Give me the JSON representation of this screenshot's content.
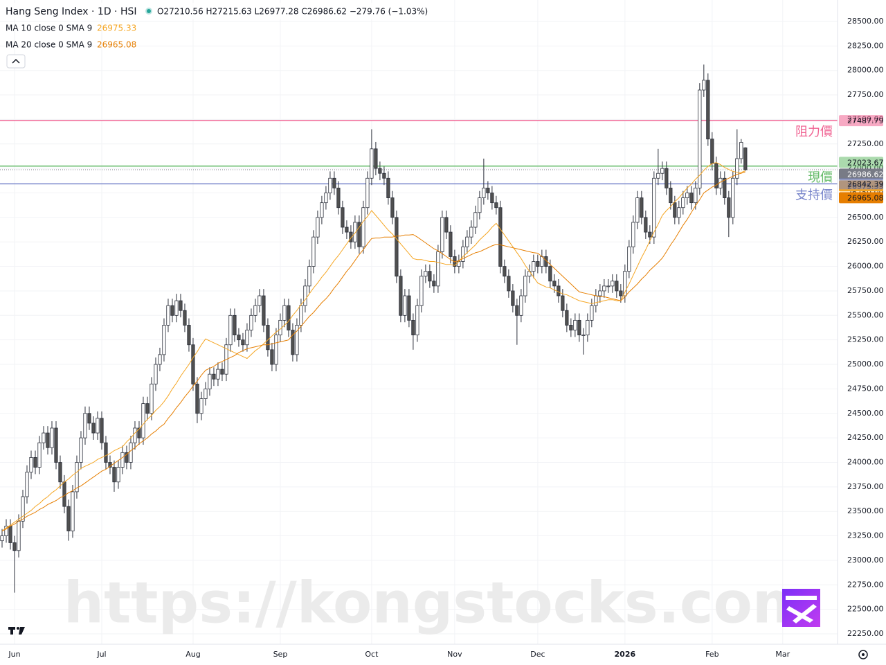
{
  "chart_data": {
    "type": "candlestick",
    "title": "Hang Seng Index · 1D · HSI",
    "ohlc_text": "O27210.56 H27215.63 L26977.28 C26986.62 −279.76 (−1.03%)",
    "watermark": "https://kongstocks.com",
    "up_color": "#ffffff",
    "down_color": "#505050",
    "wick_color": "#2a2e39",
    "open": [
      23200,
      23250,
      23350,
      23180,
      23100,
      23400,
      23650,
      23900,
      24050,
      23950,
      24200,
      24300,
      24150,
      24350,
      24000,
      23800,
      23550,
      23300,
      23700,
      24000,
      24250,
      24500,
      24400,
      24300,
      24450,
      24200,
      24000,
      23950,
      23800,
      23950,
      24100,
      24000,
      24200,
      24350,
      24250,
      24600,
      24500,
      24800,
      25000,
      25100,
      25400,
      25600,
      25500,
      25650,
      25550,
      25400,
      25200,
      24800,
      24500,
      24650,
      24750,
      24900,
      24850,
      24950,
      24900,
      25200,
      25500,
      25300,
      25250,
      25200,
      25350,
      25500,
      25600,
      25700,
      25400,
      25150,
      25000,
      25300,
      25450,
      25600,
      25350,
      25100,
      25400,
      25600,
      25800,
      26000,
      26300,
      26500,
      26650,
      26750,
      26900,
      26800,
      26600,
      26400,
      26350,
      26250,
      26450,
      26200,
      26600,
      26900,
      27200,
      27000,
      26950,
      26900,
      26700,
      26500,
      25900,
      25500,
      25700,
      25450,
      25300,
      25600,
      25900,
      25950,
      25850,
      25800,
      26150,
      26500,
      26350,
      26100,
      26000,
      26050,
      26200,
      26300,
      26400,
      26550,
      26700,
      26800,
      26750,
      26650,
      26600,
      26000,
      25900,
      25750,
      25600,
      25500,
      25700,
      25900,
      25950,
      26050,
      26000,
      26100,
      26000,
      25850,
      25800,
      25700,
      25550,
      25400,
      25350,
      25450,
      25300,
      25300,
      25450,
      25600,
      25700,
      25750,
      25800,
      25800,
      25850,
      25750,
      25700,
      25950,
      26200,
      26450,
      26700,
      26500,
      26350,
      26300,
      26900,
      26950,
      27000,
      26800,
      26650,
      26500,
      26600,
      26700,
      26750,
      26650,
      26800,
      27800,
      27900,
      27300,
      27050,
      26800,
      26900,
      26700,
      26500,
      26900,
      27100,
      27210.56
    ],
    "high": [
      23320,
      23420,
      23420,
      23250,
      23470,
      23720,
      23970,
      24120,
      24120,
      24270,
      24370,
      24370,
      24420,
      24420,
      24070,
      23870,
      23620,
      23770,
      24070,
      24320,
      24570,
      24570,
      24470,
      24520,
      24520,
      24270,
      24070,
      24020,
      24020,
      24170,
      24170,
      24270,
      24420,
      24420,
      24670,
      24670,
      24870,
      25070,
      25170,
      25470,
      25670,
      25670,
      25720,
      25720,
      25620,
      25470,
      25270,
      24870,
      24720,
      24820,
      24970,
      24970,
      25020,
      25020,
      25270,
      25570,
      25570,
      25370,
      25320,
      25420,
      25570,
      25670,
      25770,
      25770,
      25470,
      25220,
      25370,
      25520,
      25670,
      25670,
      25420,
      25470,
      25670,
      25870,
      26070,
      26370,
      26570,
      26720,
      26820,
      26970,
      26970,
      26870,
      26670,
      26470,
      26420,
      26520,
      26520,
      26670,
      26970,
      27400,
      27270,
      27070,
      27020,
      26970,
      26770,
      26570,
      25970,
      25770,
      25770,
      25520,
      25670,
      25970,
      26020,
      26020,
      25920,
      26220,
      26570,
      26570,
      26420,
      26170,
      26120,
      26270,
      26370,
      26470,
      26620,
      26770,
      27100,
      26870,
      26820,
      26720,
      26670,
      26070,
      25970,
      25820,
      25670,
      25770,
      25970,
      26020,
      26120,
      26120,
      26170,
      26170,
      26070,
      25920,
      25870,
      25770,
      25620,
      25470,
      25520,
      25520,
      25370,
      25520,
      25670,
      25770,
      25820,
      25870,
      25870,
      25920,
      25920,
      25820,
      26020,
      26270,
      26520,
      26770,
      26770,
      26570,
      26420,
      26970,
      27200,
      27070,
      27070,
      26870,
      26720,
      26670,
      26770,
      26820,
      26820,
      26870,
      27870,
      28060,
      27970,
      27370,
      27120,
      26970,
      26970,
      26770,
      26970,
      27400,
      27300,
      27215.63
    ],
    "low": [
      23130,
      23180,
      23110,
      22670,
      23030,
      23330,
      23580,
      23830,
      23880,
      23880,
      24130,
      24080,
      24080,
      23930,
      23730,
      23480,
      23200,
      23230,
      23630,
      23930,
      24180,
      24330,
      24230,
      24230,
      24130,
      23930,
      23880,
      23700,
      23730,
      23880,
      23930,
      23930,
      24130,
      24180,
      24180,
      24430,
      24430,
      24730,
      24930,
      25030,
      25330,
      25430,
      25430,
      25480,
      25330,
      25130,
      24730,
      24400,
      24430,
      24580,
      24680,
      24780,
      24780,
      24830,
      24830,
      25130,
      25230,
      25180,
      25130,
      25130,
      25280,
      25430,
      25530,
      25330,
      25080,
      24930,
      24930,
      25230,
      25380,
      25280,
      25030,
      25030,
      25330,
      25530,
      25730,
      25930,
      26230,
      26430,
      26580,
      26680,
      26730,
      26530,
      26330,
      26280,
      26180,
      26180,
      26130,
      26130,
      26530,
      26830,
      26930,
      26880,
      26830,
      26630,
      26430,
      25830,
      25430,
      25430,
      25380,
      25150,
      25230,
      25530,
      25830,
      25780,
      25730,
      25730,
      26080,
      26280,
      26030,
      25930,
      25930,
      25980,
      26130,
      26230,
      26330,
      26480,
      26630,
      26680,
      26580,
      26530,
      25930,
      25830,
      25680,
      25530,
      25200,
      25430,
      25630,
      25830,
      25880,
      25930,
      25930,
      25930,
      25780,
      25730,
      25630,
      25480,
      25330,
      25280,
      25280,
      25230,
      25100,
      25230,
      25380,
      25530,
      25630,
      25680,
      25730,
      25730,
      25680,
      25630,
      25630,
      25880,
      26130,
      26380,
      26430,
      26280,
      26230,
      26230,
      26830,
      26880,
      26730,
      26580,
      26430,
      26430,
      26530,
      26630,
      26580,
      26580,
      26730,
      27730,
      27230,
      26980,
      26730,
      26730,
      26630,
      26300,
      26430,
      26830,
      27050,
      26977.28
    ],
    "close": [
      23250,
      23350,
      23180,
      23100,
      23400,
      23650,
      23900,
      24050,
      23950,
      24200,
      24300,
      24150,
      24350,
      24000,
      23800,
      23550,
      23300,
      23700,
      24000,
      24250,
      24500,
      24400,
      24300,
      24450,
      24200,
      24000,
      23950,
      23800,
      23950,
      24100,
      24000,
      24200,
      24350,
      24250,
      24600,
      24500,
      24800,
      25000,
      25100,
      25400,
      25600,
      25500,
      25650,
      25550,
      25400,
      25200,
      24800,
      24500,
      24650,
      24750,
      24900,
      24850,
      24950,
      24900,
      25200,
      25500,
      25300,
      25250,
      25200,
      25350,
      25500,
      25600,
      25700,
      25400,
      25150,
      25000,
      25300,
      25450,
      25600,
      25350,
      25100,
      25400,
      25600,
      25800,
      26000,
      26300,
      26500,
      26650,
      26750,
      26900,
      26800,
      26600,
      26400,
      26350,
      26250,
      26450,
      26200,
      26600,
      26900,
      27200,
      27000,
      26950,
      26900,
      26700,
      26500,
      25900,
      25500,
      25700,
      25450,
      25300,
      25600,
      25900,
      25950,
      25850,
      25800,
      26150,
      26500,
      26350,
      26100,
      26000,
      26050,
      26200,
      26300,
      26400,
      26550,
      26700,
      26800,
      26750,
      26650,
      26600,
      26000,
      25900,
      25750,
      25600,
      25500,
      25700,
      25900,
      25950,
      26050,
      26000,
      26100,
      26000,
      25850,
      25800,
      25700,
      25550,
      25400,
      25350,
      25450,
      25300,
      25300,
      25450,
      25600,
      25700,
      25750,
      25800,
      25800,
      25850,
      25750,
      25700,
      25950,
      26200,
      26450,
      26700,
      26500,
      26350,
      26300,
      26900,
      26950,
      27000,
      26800,
      26650,
      26500,
      26600,
      26700,
      26750,
      26650,
      26800,
      27800,
      27900,
      27300,
      27050,
      26800,
      26900,
      26700,
      26500,
      26900,
      27100,
      27266.38,
      26986.62
    ],
    "series": [
      {
        "name": "MA 10 close 0 SMA 9",
        "color": "#f5a623",
        "values": [
          23300,
          23330,
          23360,
          23390,
          23420,
          23450,
          23480,
          23510,
          23550,
          23580,
          23620,
          23650,
          23690,
          23720,
          23760,
          23800,
          23830,
          23870,
          23900,
          23940,
          23960,
          23980,
          24000,
          24030,
          24050,
          24070,
          24090,
          24120,
          24140,
          24160,
          24210,
          24250,
          24300,
          24340,
          24390,
          24440,
          24480,
          24530,
          24570,
          24620,
          24680,
          24750,
          24810,
          24880,
          24940,
          25000,
          25070,
          25130,
          25200,
          25260,
          25240,
          25220,
          25200,
          25180,
          25160,
          25140,
          25120,
          25100,
          25080,
          25060,
          25100,
          25140,
          25170,
          25210,
          25250,
          25290,
          25330,
          25360,
          25400,
          25440,
          25500,
          25550,
          25610,
          25660,
          25720,
          25780,
          25830,
          25890,
          25940,
          26000,
          26060,
          26110,
          26170,
          26230,
          26290,
          26340,
          26400,
          26460,
          26510,
          26570,
          26520,
          26470,
          26420,
          26370,
          26330,
          26280,
          26230,
          26180,
          26130,
          26080,
          26070,
          26070,
          26060,
          26050,
          26050,
          26040,
          26030,
          26020,
          26020,
          26010,
          26050,
          26100,
          26140,
          26180,
          26220,
          26270,
          26310,
          26350,
          26400,
          26440,
          26380,
          26320,
          26260,
          26200,
          26140,
          26080,
          26010,
          25950,
          25890,
          25830,
          25810,
          25790,
          25780,
          25760,
          25740,
          25720,
          25710,
          25690,
          25670,
          25650,
          25640,
          25630,
          25620,
          25630,
          25640,
          25650,
          25660,
          25660,
          25650,
          25650,
          25740,
          25820,
          25910,
          26000,
          26090,
          26170,
          26260,
          26350,
          26430,
          26520,
          26570,
          26610,
          26660,
          26700,
          26750,
          26800,
          26840,
          26890,
          26930,
          26980,
          27020,
          27050,
          27060,
          27040,
          27010,
          26990,
          26970,
          26960,
          26960,
          26975.33
        ]
      },
      {
        "name": "MA 20 close 0 SMA 9",
        "color": "#e67e00",
        "values": [
          23300,
          23320,
          23350,
          23370,
          23400,
          23420,
          23450,
          23470,
          23490,
          23520,
          23540,
          23570,
          23590,
          23610,
          23640,
          23660,
          23690,
          23710,
          23740,
          23760,
          23790,
          23820,
          23850,
          23880,
          23910,
          23930,
          23960,
          23990,
          24020,
          24050,
          24080,
          24120,
          24150,
          24190,
          24220,
          24250,
          24290,
          24320,
          24360,
          24390,
          24450,
          24500,
          24560,
          24610,
          24670,
          24720,
          24780,
          24830,
          24890,
          24940,
          24960,
          24980,
          25010,
          25030,
          25050,
          25070,
          25090,
          25120,
          25140,
          25160,
          25170,
          25180,
          25190,
          25200,
          25200,
          25210,
          25220,
          25230,
          25240,
          25250,
          25300,
          25340,
          25390,
          25440,
          25490,
          25530,
          25580,
          25630,
          25670,
          25720,
          25780,
          25830,
          25890,
          25950,
          26000,
          26060,
          26120,
          26170,
          26230,
          26285,
          26290,
          26290,
          26300,
          26300,
          26300,
          26310,
          26310,
          26320,
          26320,
          26325,
          26300,
          26270,
          26240,
          26210,
          26180,
          26160,
          26130,
          26100,
          26070,
          26045,
          26060,
          26080,
          26100,
          26120,
          26140,
          26150,
          26170,
          26190,
          26210,
          26225,
          26220,
          26210,
          26200,
          26190,
          26180,
          26170,
          26160,
          26150,
          26140,
          26135,
          26100,
          26060,
          26020,
          25980,
          25940,
          25900,
          25860,
          25820,
          25780,
          25740,
          25730,
          25720,
          25710,
          25700,
          25690,
          25690,
          25680,
          25670,
          25660,
          25650,
          25690,
          25740,
          25780,
          25820,
          25870,
          25910,
          25960,
          26000,
          26040,
          26085,
          26150,
          26220,
          26280,
          26350,
          26420,
          26480,
          26550,
          26620,
          26680,
          26750,
          26780,
          26810,
          26830,
          26860,
          26880,
          26900,
          26920,
          26940,
          26950,
          26965.08
        ]
      }
    ],
    "levels": [
      {
        "label": "阻力價",
        "value": 27487.79,
        "color": "#f06292"
      },
      {
        "label": "現價",
        "value": 27023.67,
        "color": "#66bb6a"
      },
      {
        "label": "支持價",
        "value": 26842.39,
        "color": "#7986cb"
      }
    ],
    "last_price": {
      "value": 26986.62,
      "color": "#787b86"
    },
    "xlim": [
      -0.5,
      201.2
    ],
    "xticks": [
      {
        "value": 3,
        "label": "Jun"
      },
      {
        "value": 24,
        "label": "Jul"
      },
      {
        "value": 46,
        "label": "Aug"
      },
      {
        "value": 67,
        "label": "Sep"
      },
      {
        "value": 89,
        "label": "Oct"
      },
      {
        "value": 109,
        "label": "Nov"
      },
      {
        "value": 129,
        "label": "Dec"
      },
      {
        "value": 150,
        "label": "2026"
      },
      {
        "value": 171,
        "label": "Feb"
      },
      {
        "value": 188,
        "label": "Mar"
      }
    ],
    "ylim": [
      22144,
      28719
    ],
    "yticks": [
      {
        "value": 22250,
        "label": "22250.00"
      },
      {
        "value": 22500,
        "label": "22500.00"
      },
      {
        "value": 22750,
        "label": "22750.00"
      },
      {
        "value": 23000,
        "label": "23000.00"
      },
      {
        "value": 23250,
        "label": "23250.00"
      },
      {
        "value": 23500,
        "label": "23500.00"
      },
      {
        "value": 23750,
        "label": "23750.00"
      },
      {
        "value": 24000,
        "label": "24000.00"
      },
      {
        "value": 24250,
        "label": "24250.00"
      },
      {
        "value": 24500,
        "label": "24500.00"
      },
      {
        "value": 24750,
        "label": "24750.00"
      },
      {
        "value": 25000,
        "label": "25000.00"
      },
      {
        "value": 25250,
        "label": "25250.00"
      },
      {
        "value": 25500,
        "label": "25500.00"
      },
      {
        "value": 25750,
        "label": "25750.00"
      },
      {
        "value": 26000,
        "label": "26000.00"
      },
      {
        "value": 26250,
        "label": "26250.00"
      },
      {
        "value": 26500,
        "label": "26500.00"
      },
      {
        "value": 26750,
        "label": "26750.00"
      },
      {
        "value": 27000,
        "label": "27000.00"
      },
      {
        "value": 27250,
        "label": "27250.00"
      },
      {
        "value": 27500,
        "label": "27500.00"
      },
      {
        "value": 27750,
        "label": "27750.00"
      },
      {
        "value": 28000,
        "label": "28000.00"
      },
      {
        "value": 28250,
        "label": "28250.00"
      },
      {
        "value": 28500,
        "label": "28500.00"
      }
    ],
    "grid": true
  }
}
